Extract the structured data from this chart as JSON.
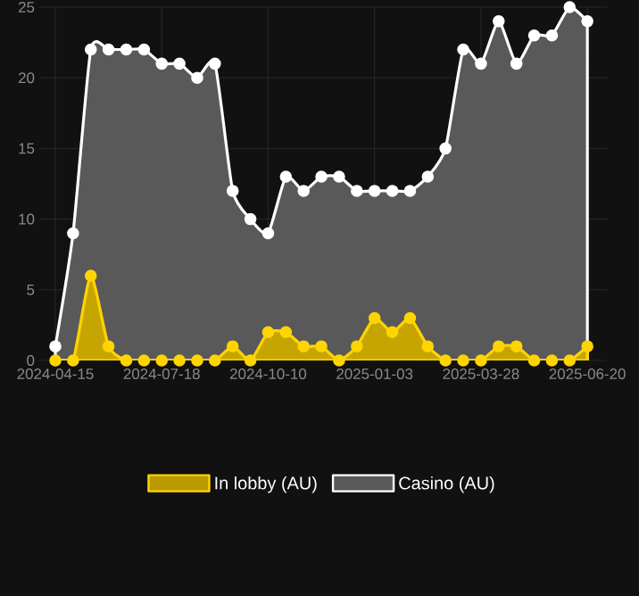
{
  "chart_data": {
    "type": "area",
    "categories": [
      "2024-04-15",
      null,
      null,
      null,
      null,
      null,
      "2024-07-18",
      null,
      null,
      null,
      null,
      null,
      "2024-10-10",
      null,
      null,
      null,
      null,
      null,
      "2025-01-03",
      null,
      null,
      null,
      null,
      null,
      "2025-03-28",
      null,
      null,
      null,
      null,
      null,
      "2025-06-20"
    ],
    "series": [
      {
        "name": "In lobby (AU)",
        "color": "#ffd400",
        "values": [
          0,
          0,
          6,
          1,
          0,
          0,
          0,
          0,
          0,
          0,
          1,
          0,
          2,
          2,
          1,
          1,
          0,
          1,
          3,
          2,
          3,
          1,
          0,
          0,
          0,
          1,
          1,
          0,
          0,
          0,
          1
        ]
      },
      {
        "name": "Casino (AU)",
        "color": "#ffffff",
        "values": [
          1,
          9,
          22,
          22,
          22,
          22,
          21,
          21,
          20,
          21,
          12,
          10,
          9,
          13,
          12,
          13,
          13,
          12,
          12,
          12,
          12,
          13,
          15,
          22,
          21,
          24,
          21,
          23,
          23,
          25,
          24
        ]
      }
    ],
    "ylim": [
      0,
      25
    ],
    "yticks": [
      0,
      5,
      10,
      15,
      20,
      25
    ],
    "grid": true,
    "legend": "bottom",
    "marker": "circle"
  }
}
